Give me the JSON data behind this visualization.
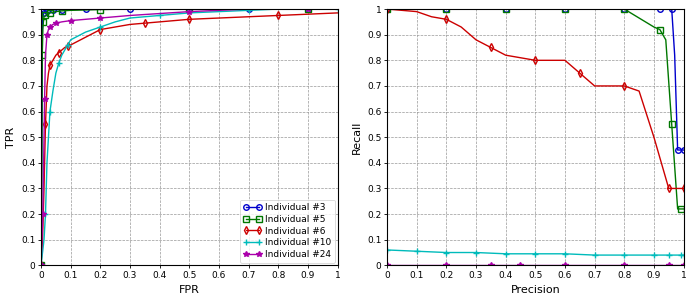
{
  "title": "",
  "roc_xlabel": "FPR",
  "roc_ylabel": "TPR",
  "pr_xlabel": "Precision",
  "pr_ylabel": "Recall",
  "individuals": [
    "Individual #3",
    "Individual #5",
    "Individual #6",
    "Individual #10",
    "Individual #24"
  ],
  "colors": [
    "#0000cc",
    "#007700",
    "#cc0000",
    "#00bbbb",
    "#aa00aa"
  ],
  "markers": [
    "o",
    "s",
    "d",
    "+",
    "*"
  ],
  "roc_curves": {
    "ind3": {
      "fpr": [
        0.0,
        0.005,
        0.01,
        0.015,
        0.02,
        0.03,
        0.04,
        0.05,
        0.07,
        0.1,
        0.15,
        0.2,
        0.3,
        0.4,
        0.5,
        0.6,
        0.7,
        0.8,
        0.9,
        1.0
      ],
      "tpr": [
        0.0,
        0.97,
        0.985,
        0.99,
        0.993,
        0.995,
        0.996,
        0.997,
        0.998,
        0.999,
        0.999,
        1.0,
        1.0,
        1.0,
        1.0,
        1.0,
        1.0,
        1.0,
        1.0,
        1.0
      ]
    },
    "ind5": {
      "fpr": [
        0.0,
        0.002,
        0.004,
        0.006,
        0.008,
        0.01,
        0.015,
        0.02,
        0.03,
        0.05,
        0.07,
        0.1,
        0.2,
        0.3,
        0.5,
        0.7,
        0.9,
        1.0
      ],
      "tpr": [
        0.0,
        0.25,
        0.82,
        0.92,
        0.95,
        0.97,
        0.975,
        0.98,
        0.985,
        0.99,
        0.993,
        0.995,
        0.998,
        1.0,
        1.0,
        1.0,
        1.0,
        1.0
      ]
    },
    "ind6": {
      "fpr": [
        0.0,
        0.005,
        0.01,
        0.015,
        0.02,
        0.025,
        0.03,
        0.04,
        0.05,
        0.06,
        0.07,
        0.08,
        0.09,
        0.1,
        0.15,
        0.2,
        0.25,
        0.3,
        0.35,
        0.4,
        0.45,
        0.5,
        0.6,
        0.7,
        0.8,
        0.9,
        1.0
      ],
      "tpr": [
        0.0,
        0.1,
        0.3,
        0.55,
        0.7,
        0.75,
        0.78,
        0.8,
        0.82,
        0.83,
        0.84,
        0.85,
        0.855,
        0.86,
        0.89,
        0.92,
        0.93,
        0.94,
        0.945,
        0.95,
        0.955,
        0.96,
        0.965,
        0.97,
        0.975,
        0.98,
        0.985
      ]
    },
    "ind10": {
      "fpr": [
        0.0,
        0.005,
        0.01,
        0.015,
        0.02,
        0.025,
        0.03,
        0.04,
        0.05,
        0.06,
        0.07,
        0.08,
        0.09,
        0.1,
        0.15,
        0.2,
        0.25,
        0.3,
        0.4,
        0.5,
        0.6,
        0.7,
        0.8,
        0.9,
        1.0
      ],
      "tpr": [
        0.0,
        0.05,
        0.1,
        0.2,
        0.4,
        0.5,
        0.6,
        0.68,
        0.75,
        0.79,
        0.82,
        0.84,
        0.86,
        0.88,
        0.91,
        0.93,
        0.95,
        0.965,
        0.975,
        0.985,
        0.99,
        0.995,
        1.0,
        1.0,
        1.0
      ]
    },
    "ind24": {
      "fpr": [
        0.0,
        0.003,
        0.006,
        0.009,
        0.012,
        0.015,
        0.02,
        0.025,
        0.03,
        0.04,
        0.05,
        0.07,
        0.1,
        0.15,
        0.2,
        0.3,
        0.5,
        0.7,
        0.9,
        1.0
      ],
      "tpr": [
        0.0,
        0.1,
        0.2,
        0.42,
        0.65,
        0.82,
        0.9,
        0.92,
        0.93,
        0.94,
        0.945,
        0.95,
        0.955,
        0.96,
        0.965,
        0.975,
        0.99,
        1.0,
        1.0,
        1.0
      ]
    }
  },
  "pr_curves": {
    "ind3": {
      "precision": [
        0.0,
        0.1,
        0.2,
        0.3,
        0.4,
        0.5,
        0.6,
        0.7,
        0.8,
        0.9,
        0.92,
        0.94,
        0.96,
        0.97,
        0.98,
        0.99,
        1.0
      ],
      "recall": [
        1.0,
        1.0,
        1.0,
        1.0,
        1.0,
        1.0,
        1.0,
        1.0,
        1.0,
        1.0,
        1.0,
        1.0,
        1.0,
        0.82,
        0.45,
        0.45,
        0.45
      ]
    },
    "ind5": {
      "precision": [
        0.0,
        0.1,
        0.2,
        0.3,
        0.4,
        0.5,
        0.6,
        0.7,
        0.8,
        0.9,
        0.92,
        0.94,
        0.96,
        0.98,
        0.99,
        1.0
      ],
      "recall": [
        1.0,
        1.0,
        1.0,
        1.0,
        1.0,
        1.0,
        1.0,
        1.0,
        1.0,
        0.93,
        0.92,
        0.88,
        0.55,
        0.22,
        0.22,
        0.22
      ]
    },
    "ind6": {
      "precision": [
        0.0,
        0.1,
        0.15,
        0.2,
        0.25,
        0.3,
        0.35,
        0.4,
        0.45,
        0.5,
        0.55,
        0.6,
        0.65,
        0.7,
        0.75,
        0.8,
        0.85,
        0.9,
        0.95,
        0.97,
        0.99,
        1.0
      ],
      "recall": [
        1.0,
        0.99,
        0.97,
        0.96,
        0.93,
        0.88,
        0.85,
        0.82,
        0.81,
        0.8,
        0.8,
        0.8,
        0.75,
        0.7,
        0.7,
        0.7,
        0.68,
        0.5,
        0.3,
        0.3,
        0.3,
        0.3
      ]
    },
    "ind10": {
      "precision": [
        0.0,
        0.1,
        0.2,
        0.3,
        0.4,
        0.5,
        0.6,
        0.7,
        0.8,
        0.9,
        0.95,
        0.99,
        1.0
      ],
      "recall": [
        0.06,
        0.055,
        0.05,
        0.05,
        0.045,
        0.045,
        0.045,
        0.04,
        0.04,
        0.04,
        0.04,
        0.04,
        0.04
      ]
    },
    "ind24": {
      "precision": [
        0.0,
        0.1,
        0.2,
        0.3,
        0.35,
        0.4,
        0.45,
        0.5,
        0.6,
        0.7,
        0.8,
        0.9,
        0.95,
        0.99,
        1.0
      ],
      "recall": [
        0.0,
        0.0,
        0.0,
        0.0,
        0.0,
        0.0,
        0.0,
        0.0,
        0.0,
        0.0,
        0.0,
        0.0,
        0.0,
        0.0,
        0.0
      ]
    }
  },
  "xlim_roc": [
    0,
    1
  ],
  "ylim_roc": [
    0,
    1
  ],
  "xlim_pr": [
    0,
    1
  ],
  "ylim_pr": [
    0,
    1
  ],
  "roc_xticks": [
    0,
    0.1,
    0.2,
    0.3,
    0.4,
    0.5,
    0.6,
    0.7,
    0.8,
    0.9,
    1
  ],
  "roc_yticks": [
    0,
    0.1,
    0.2,
    0.3,
    0.4,
    0.5,
    0.6,
    0.7,
    0.8,
    0.9,
    1
  ],
  "pr_xticks": [
    0,
    0.1,
    0.2,
    0.3,
    0.4,
    0.5,
    0.6,
    0.7,
    0.8,
    0.9,
    1
  ],
  "pr_yticks": [
    0,
    0.1,
    0.2,
    0.3,
    0.4,
    0.5,
    0.6,
    0.7,
    0.8,
    0.9,
    1
  ],
  "marker_size": 4,
  "linewidth": 1.0,
  "grid_color": "#999999",
  "grid_style": "--",
  "bg_color": "#ffffff",
  "legend_fontsize": 6.5,
  "axis_fontsize": 8,
  "tick_fontsize": 6.5
}
